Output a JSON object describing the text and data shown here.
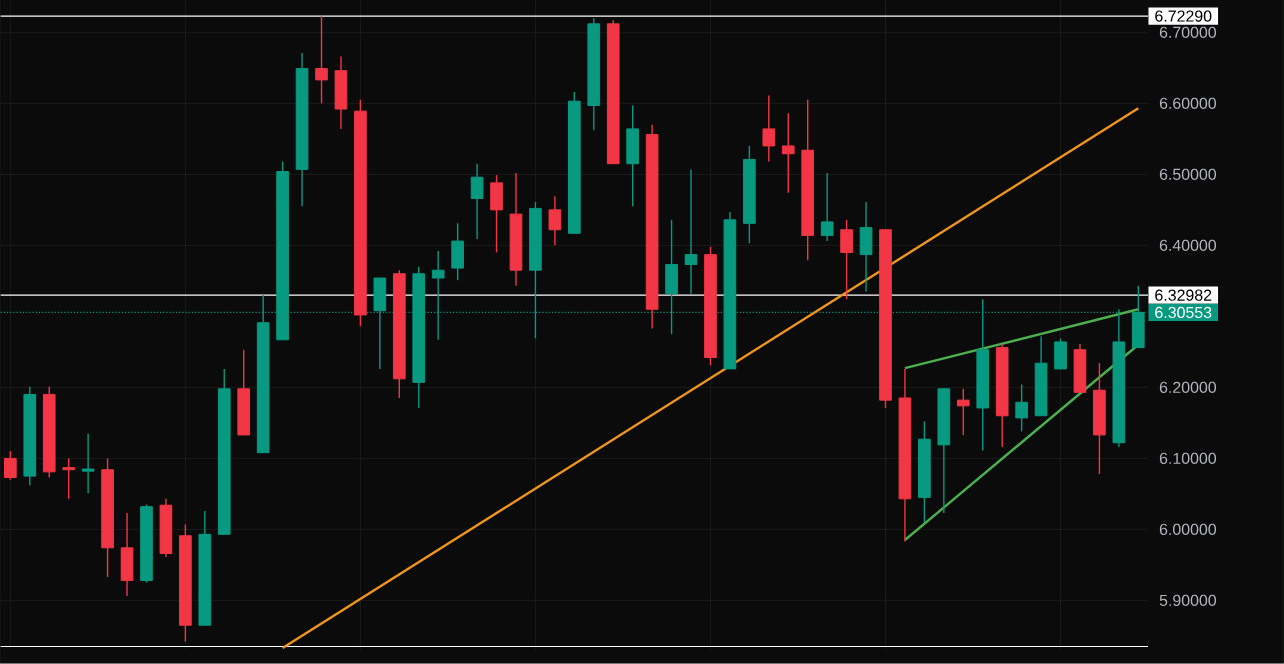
{
  "chart_data": {
    "type": "candlestick",
    "categories": [
      null,
      null,
      null,
      null,
      null,
      null,
      null,
      null,
      null,
      null,
      null,
      null,
      null,
      null,
      null,
      null,
      null,
      null,
      null,
      null,
      null,
      null,
      null,
      null,
      null,
      null,
      null,
      null,
      null,
      null,
      null,
      null,
      null,
      null,
      null,
      null,
      null,
      null,
      null,
      null,
      null,
      null,
      null,
      null,
      null,
      null,
      null,
      null,
      null,
      null,
      null,
      null,
      null,
      null,
      null,
      null,
      null,
      null,
      null
    ],
    "ohlc": [
      [
        6.1,
        6.11,
        6.07,
        6.073
      ],
      [
        6.075,
        6.201,
        6.062,
        6.19
      ],
      [
        6.19,
        6.201,
        6.073,
        6.081
      ],
      [
        6.087,
        6.1,
        6.043,
        6.084
      ],
      [
        6.082,
        6.135,
        6.051,
        6.085
      ],
      [
        6.084,
        6.1,
        5.933,
        5.974
      ],
      [
        5.974,
        6.023,
        5.906,
        5.928
      ],
      [
        5.928,
        6.035,
        5.925,
        6.032
      ],
      [
        6.034,
        6.043,
        5.961,
        5.966
      ],
      [
        5.991,
        6.007,
        5.842,
        5.865
      ],
      [
        5.865,
        6.026,
        5.865,
        5.993
      ],
      [
        5.993,
        6.226,
        5.993,
        6.198
      ],
      [
        6.198,
        6.253,
        6.133,
        6.133
      ],
      [
        6.108,
        6.33,
        6.108,
        6.291
      ],
      [
        6.267,
        6.518,
        6.267,
        6.504
      ],
      [
        6.507,
        6.671,
        6.455,
        6.649
      ],
      [
        6.649,
        6.7229,
        6.6,
        6.633
      ],
      [
        6.646,
        6.666,
        6.564,
        6.592
      ],
      [
        6.589,
        6.605,
        6.286,
        6.302
      ],
      [
        6.308,
        6.354,
        6.226,
        6.354
      ],
      [
        6.36,
        6.365,
        6.185,
        6.212
      ],
      [
        6.207,
        6.37,
        6.171,
        6.36
      ],
      [
        6.354,
        6.392,
        6.267,
        6.365
      ],
      [
        6.368,
        6.431,
        6.351,
        6.406
      ],
      [
        6.466,
        6.515,
        6.409,
        6.496
      ],
      [
        6.488,
        6.499,
        6.39,
        6.45
      ],
      [
        6.444,
        6.502,
        6.343,
        6.365
      ],
      [
        6.365,
        6.461,
        6.269,
        6.452
      ],
      [
        6.45,
        6.469,
        6.4,
        6.422
      ],
      [
        6.417,
        6.616,
        6.417,
        6.603
      ],
      [
        6.597,
        6.72,
        6.562,
        6.712
      ],
      [
        6.712,
        6.717,
        6.515,
        6.515
      ],
      [
        6.515,
        6.597,
        6.455,
        6.564
      ],
      [
        6.556,
        6.57,
        6.283,
        6.31
      ],
      [
        6.332,
        6.436,
        6.275,
        6.373
      ],
      [
        6.373,
        6.507,
        6.332,
        6.387
      ],
      [
        6.387,
        6.398,
        6.231,
        6.242
      ],
      [
        6.226,
        6.447,
        6.226,
        6.436
      ],
      [
        6.431,
        6.54,
        6.403,
        6.521
      ],
      [
        6.564,
        6.611,
        6.518,
        6.54
      ],
      [
        6.54,
        6.586,
        6.474,
        6.529
      ],
      [
        6.534,
        6.605,
        6.379,
        6.414
      ],
      [
        6.414,
        6.502,
        6.406,
        6.433
      ],
      [
        6.422,
        6.436,
        6.324,
        6.39
      ],
      [
        6.387,
        6.461,
        6.335,
        6.425
      ],
      [
        6.422,
        6.422,
        6.171,
        6.182
      ],
      [
        6.185,
        6.226,
        5.983,
        6.043
      ],
      [
        6.045,
        6.152,
        6.01,
        6.127
      ],
      [
        6.119,
        6.198,
        6.023,
        6.198
      ],
      [
        6.182,
        6.198,
        6.133,
        6.174
      ],
      [
        6.171,
        6.324,
        6.111,
        6.253
      ],
      [
        6.256,
        6.261,
        6.116,
        6.16
      ],
      [
        6.157,
        6.204,
        6.138,
        6.179
      ],
      [
        6.16,
        6.272,
        6.16,
        6.234
      ],
      [
        6.226,
        6.269,
        6.226,
        6.264
      ],
      [
        6.253,
        6.261,
        6.193,
        6.193
      ],
      [
        6.196,
        6.234,
        6.078,
        6.133
      ],
      [
        6.122,
        6.31,
        6.116,
        6.264
      ],
      [
        6.256,
        6.343,
        6.256,
        6.30553
      ]
    ],
    "colors": [
      "#f23645",
      "#089981",
      "#f23645",
      "#f23645",
      "#089981",
      "#f23645",
      "#f23645",
      "#089981",
      "#f23645",
      "#f23645",
      "#089981",
      "#089981",
      "#f23645",
      "#089981",
      "#089981",
      "#089981",
      "#f23645",
      "#f23645",
      "#f23645",
      "#089981",
      "#f23645",
      "#089981",
      "#089981",
      "#089981",
      "#089981",
      "#f23645",
      "#f23645",
      "#089981",
      "#f23645",
      "#089981",
      "#089981",
      "#f23645",
      "#089981",
      "#f23645",
      "#089981",
      "#089981",
      "#f23645",
      "#089981",
      "#089981",
      "#f23645",
      "#f23645",
      "#f23645",
      "#089981",
      "#f23645",
      "#089981",
      "#f23645",
      "#f23645",
      "#089981",
      "#089981",
      "#f23645",
      "#089981",
      "#f23645",
      "#089981",
      "#089981",
      "#089981",
      "#f23645",
      "#f23645",
      "#089981",
      "#089981"
    ],
    "series": [
      {
        "type": "line",
        "color": "#f0961e",
        "values": [
          null,
          null,
          null,
          null,
          null,
          null,
          null,
          null,
          null,
          null,
          null,
          null,
          null,
          null,
          5.833,
          null,
          null,
          null,
          null,
          null,
          null,
          null,
          null,
          null,
          null,
          null,
          null,
          null,
          null,
          null,
          null,
          null,
          null,
          null,
          null,
          null,
          null,
          null,
          null,
          null,
          null,
          null,
          null,
          null,
          null,
          null,
          null,
          null,
          null,
          null,
          null,
          null,
          null,
          null,
          null,
          null,
          null,
          null,
          6.593
        ]
      },
      {
        "type": "line",
        "color": "#4caf50",
        "values": [
          null,
          null,
          null,
          null,
          null,
          null,
          null,
          null,
          null,
          null,
          null,
          null,
          null,
          null,
          null,
          null,
          null,
          null,
          null,
          null,
          null,
          null,
          null,
          null,
          null,
          null,
          null,
          null,
          null,
          null,
          null,
          null,
          null,
          null,
          null,
          null,
          null,
          null,
          null,
          null,
          null,
          null,
          null,
          null,
          null,
          null,
          6.227,
          null,
          null,
          null,
          null,
          null,
          null,
          null,
          null,
          null,
          null,
          null,
          6.31
        ]
      },
      {
        "type": "line",
        "color": "#4caf50",
        "values": [
          null,
          null,
          null,
          null,
          null,
          null,
          null,
          null,
          null,
          null,
          null,
          null,
          null,
          null,
          null,
          null,
          null,
          null,
          null,
          null,
          null,
          null,
          null,
          null,
          null,
          null,
          null,
          null,
          null,
          null,
          null,
          null,
          null,
          null,
          null,
          null,
          null,
          null,
          null,
          null,
          null,
          null,
          null,
          null,
          null,
          null,
          5.985,
          null,
          null,
          null,
          null,
          null,
          null,
          null,
          null,
          null,
          null,
          null,
          6.26
        ]
      }
    ],
    "ylim": [
      5.83,
      6.745
    ],
    "yticks": [
      {
        "value": 5.9,
        "label": "5.90000"
      },
      {
        "value": 6.0,
        "label": "6.00000"
      },
      {
        "value": 6.1,
        "label": "6.10000"
      },
      {
        "value": 6.2,
        "label": "6.20000"
      },
      {
        "value": 6.4,
        "label": "6.40000"
      },
      {
        "value": 6.5,
        "label": "6.50000"
      },
      {
        "value": 6.6,
        "label": "6.60000"
      },
      {
        "value": 6.7,
        "label": "6.70000"
      }
    ],
    "ref_lines": [
      {
        "axis": "y",
        "value": 6.7229,
        "label": "6.72290",
        "color": "#ffffff",
        "line_style": "solid"
      },
      {
        "axis": "y",
        "value": 6.32982,
        "label": "6.32982",
        "color": "#ffffff",
        "line_style": "solid"
      },
      {
        "axis": "y",
        "value": 6.30553,
        "label": "6.30553",
        "color": "#089981",
        "line_style": "dotted"
      },
      {
        "axis": "y",
        "value": 5.835,
        "label": null,
        "color": "#ffffff",
        "line_style": "solid"
      }
    ],
    "grid": true,
    "tick_labels": "y"
  }
}
